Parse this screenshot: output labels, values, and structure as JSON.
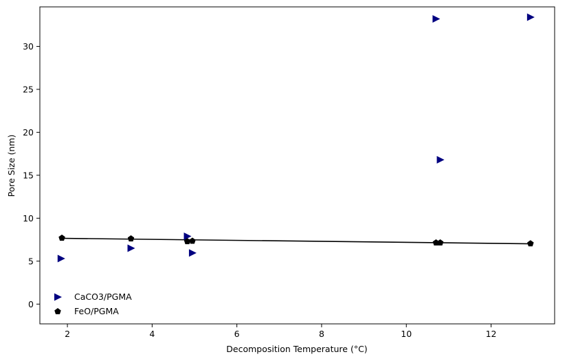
{
  "chart_data": {
    "type": "scatter",
    "title": "",
    "xlabel": "Decomposition Temperature (°C)",
    "ylabel": "Pore Size (nm)",
    "xlim": [
      1.35,
      13.5
    ],
    "ylim": [
      -2.3,
      34.6
    ],
    "xticks": [
      2,
      4,
      6,
      8,
      10,
      12
    ],
    "yticks": [
      0,
      5,
      10,
      15,
      20,
      25,
      30
    ],
    "grid": false,
    "legend_position": "lower-left",
    "series": [
      {
        "name": "CaCO3/PGMA",
        "marker": "triangle-right",
        "color": "#000080",
        "x": [
          1.85,
          3.5,
          4.83,
          4.95,
          10.7,
          10.8,
          12.93
        ],
        "y": [
          5.3,
          6.5,
          7.9,
          5.95,
          33.2,
          16.8,
          33.4
        ]
      },
      {
        "name": "FeO/PGMA",
        "marker": "pentagon",
        "color": "#000000",
        "x": [
          1.87,
          3.5,
          4.83,
          4.95,
          10.7,
          10.8,
          12.93
        ],
        "y": [
          7.7,
          7.62,
          7.3,
          7.35,
          7.15,
          7.15,
          7.05
        ]
      }
    ],
    "fit_line": {
      "color": "#000000",
      "x": [
        1.87,
        12.93
      ],
      "y": [
        7.66,
        7.02
      ]
    }
  }
}
